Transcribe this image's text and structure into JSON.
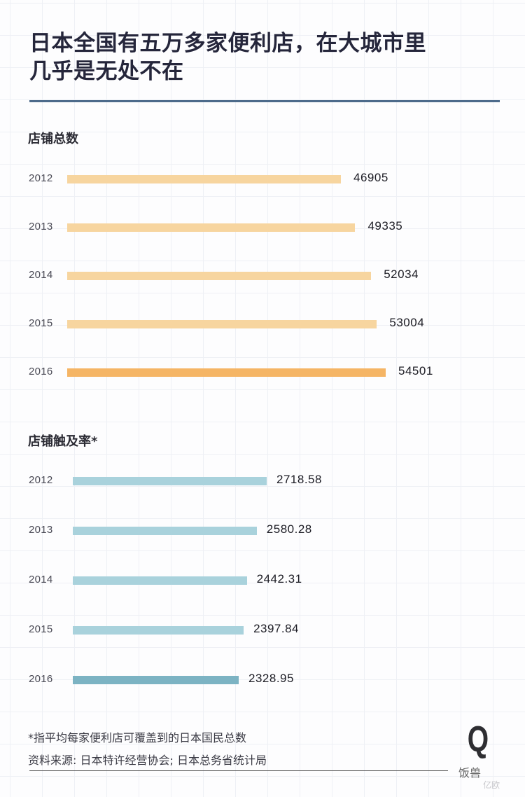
{
  "title": {
    "line1": "日本全国有五万多家便利店，在大城市里",
    "line2": "几乎是无处不在"
  },
  "colors": {
    "title": "#25263b",
    "rule": "#4d6b8b",
    "orange_bar": "#f7d59f",
    "orange_bar_highlight": "#f5b565",
    "blue_bar": "#a9d2dc",
    "blue_bar_highlight": "#7cb3c3"
  },
  "sections": {
    "store_count": {
      "label": "店铺总数",
      "rows": [
        {
          "year": "2012",
          "value": "46905"
        },
        {
          "year": "2013",
          "value": "49335"
        },
        {
          "year": "2014",
          "value": "52034"
        },
        {
          "year": "2015",
          "value": "53004"
        },
        {
          "year": "2016",
          "value": "54501"
        }
      ]
    },
    "coverage": {
      "label": "店铺触及率*",
      "rows": [
        {
          "year": "2012",
          "value": "2718.58"
        },
        {
          "year": "2013",
          "value": "2580.28"
        },
        {
          "year": "2014",
          "value": "2442.31"
        },
        {
          "year": "2015",
          "value": "2397.84"
        },
        {
          "year": "2016",
          "value": "2328.95"
        }
      ]
    }
  },
  "footer": {
    "note": "*指平均每家便利店可覆盖到的日本国民总数",
    "source": "资料来源: 日本特许经营协会; 日本总务省统计局",
    "logo_letter": "Q",
    "logo_text": "饭兽",
    "watermark": "亿欧"
  },
  "chart_data": [
    {
      "type": "bar",
      "orientation": "horizontal",
      "title": "店铺总数",
      "categories": [
        "2012",
        "2013",
        "2014",
        "2015",
        "2016"
      ],
      "values": [
        46905,
        49335,
        52034,
        53004,
        54501
      ],
      "xlabel": "",
      "ylabel": "",
      "grid": true,
      "data_labels": true,
      "highlight": "2016"
    },
    {
      "type": "bar",
      "orientation": "horizontal",
      "title": "店铺触及率*",
      "categories": [
        "2012",
        "2013",
        "2014",
        "2015",
        "2016"
      ],
      "values": [
        2718.58,
        2580.28,
        2442.31,
        2397.84,
        2328.95
      ],
      "xlabel": "",
      "ylabel": "",
      "grid": true,
      "data_labels": true,
      "highlight": "2016",
      "annotation": "*指平均每家便利店可覆盖到的日本国民总数"
    }
  ]
}
